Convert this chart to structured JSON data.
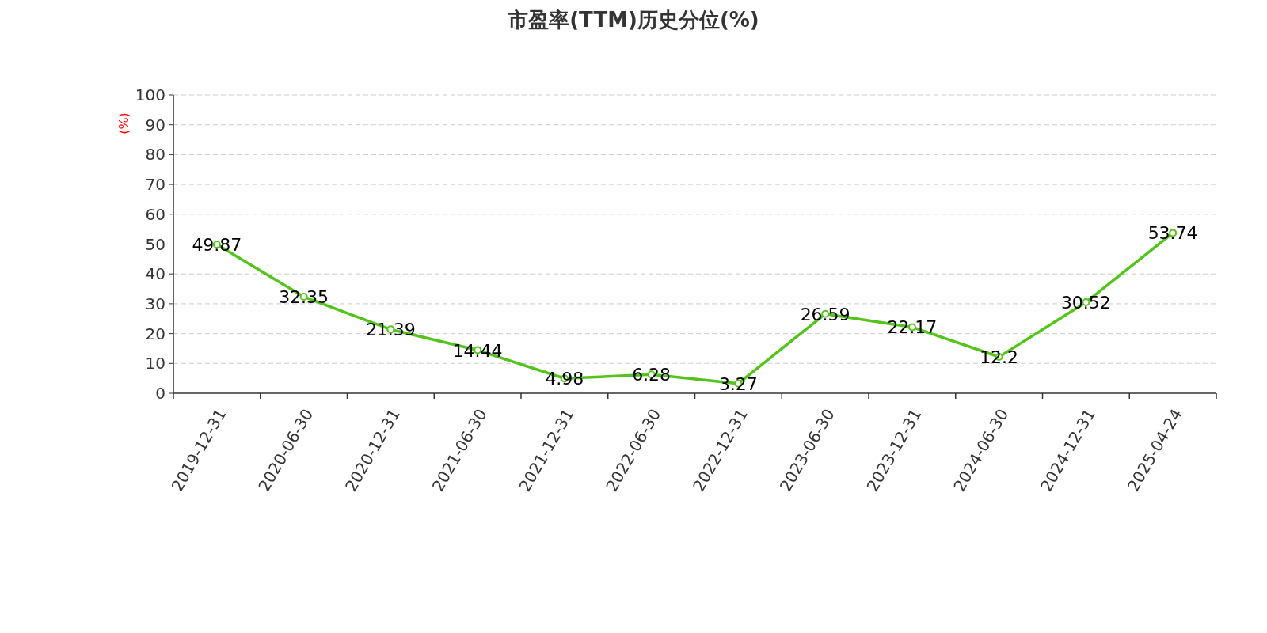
{
  "chart_data": {
    "type": "line",
    "title": "市盈率(TTM)历史分位(%)",
    "ylabel": "(%)",
    "categories": [
      "2019-12-31",
      "2020-06-30",
      "2020-12-31",
      "2021-06-30",
      "2021-12-31",
      "2022-06-30",
      "2022-12-31",
      "2023-06-30",
      "2023-12-31",
      "2024-06-30",
      "2024-12-31",
      "2025-04-24"
    ],
    "series": [
      {
        "color": "#52c41a",
        "values": [
          49.87,
          32.35,
          21.39,
          14.44,
          4.98,
          6.28,
          3.27,
          26.59,
          22.17,
          12.2,
          30.52,
          53.74
        ]
      }
    ],
    "ylim": [
      0,
      100
    ],
    "yticks": [
      0,
      10,
      20,
      30,
      40,
      50,
      60,
      70,
      80,
      90,
      100
    ],
    "grid": "y",
    "marker": "circle",
    "data_labels": true
  }
}
